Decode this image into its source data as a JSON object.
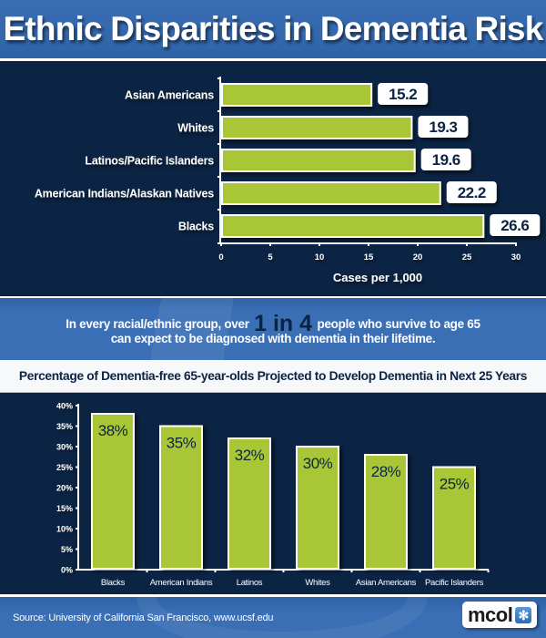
{
  "title": "Ethnic Disparities in Dementia Risk",
  "callout": {
    "line1_prefix": "In every racial/ethnic group, over",
    "highlight": "1 in 4",
    "line1_suffix": "people who survive to age 65",
    "line2": "can expect to be diagnosed with dementia in their lifetime."
  },
  "footer": {
    "source": "Source:  University of California San Francisco, www.ucsf.edu",
    "logo_text": "mcol",
    "logo_icon": "asterisk-icon"
  },
  "colors": {
    "bar_fill": "#a8c634",
    "bar_stroke": "#ffffff",
    "panel_bg": "#0b2444",
    "band_blue": "#3a6fb5",
    "label_text": "#ffffff",
    "value_text": "#0b2444"
  },
  "chart_data": [
    {
      "type": "bar",
      "orientation": "horizontal",
      "title": "",
      "categories": [
        "Asian Americans",
        "Whites",
        "Latinos/Pacific Islanders",
        "American Indians/Alaskan Natives",
        "Blacks"
      ],
      "values": [
        15.2,
        19.3,
        19.6,
        22.2,
        26.6
      ],
      "value_labels": [
        "15.2",
        "19.3",
        "19.6",
        "22.2",
        "26.6"
      ],
      "xlabel": "Cases per 1,000",
      "ylabel": "",
      "xlim": [
        0,
        30
      ],
      "xticks": [
        0,
        5,
        10,
        15,
        20,
        25,
        30
      ],
      "grid": false,
      "legend": "none"
    },
    {
      "type": "bar",
      "orientation": "vertical",
      "title": "Percentage of Dementia-free 65-year-olds Projected to Develop Dementia in Next 25 Years",
      "categories": [
        "Blacks",
        "American Indians",
        "Latinos",
        "Whites",
        "Asian Americans",
        "Pacific Islanders"
      ],
      "values": [
        38,
        35,
        32,
        30,
        28,
        25
      ],
      "value_labels": [
        "38%",
        "35%",
        "32%",
        "30%",
        "28%",
        "25%"
      ],
      "xlabel": "",
      "ylabel": "",
      "ylim": [
        0,
        40
      ],
      "yticks": [
        0,
        5,
        10,
        15,
        20,
        25,
        30,
        35,
        40
      ],
      "ytick_labels": [
        "0%",
        "5%",
        "10%",
        "15%",
        "20%",
        "25%",
        "30%",
        "35%",
        "40%"
      ],
      "grid": false,
      "legend": "none"
    }
  ]
}
